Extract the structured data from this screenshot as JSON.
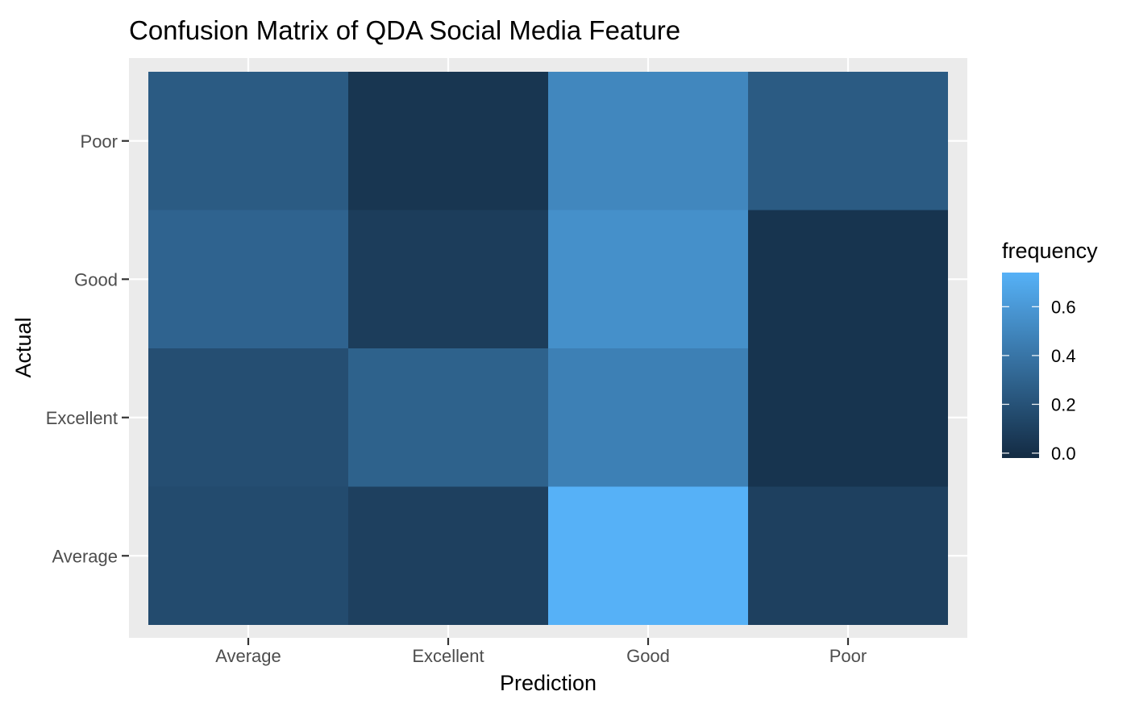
{
  "chart_data": {
    "type": "heatmap",
    "title": "Confusion Matrix of QDA Social Media Feature",
    "xlabel": "Prediction",
    "ylabel": "Actual",
    "x_categories": [
      "Average",
      "Excellent",
      "Good",
      "Poor"
    ],
    "y_categories": [
      "Average",
      "Excellent",
      "Good",
      "Poor"
    ],
    "cells": [
      {
        "actual": "Poor",
        "prediction": "Average",
        "frequency": 0.25
      },
      {
        "actual": "Poor",
        "prediction": "Excellent",
        "frequency": 0.04
      },
      {
        "actual": "Poor",
        "prediction": "Good",
        "frequency": 0.5
      },
      {
        "actual": "Poor",
        "prediction": "Poor",
        "frequency": 0.25
      },
      {
        "actual": "Good",
        "prediction": "Average",
        "frequency": 0.3
      },
      {
        "actual": "Good",
        "prediction": "Excellent",
        "frequency": 0.08
      },
      {
        "actual": "Good",
        "prediction": "Good",
        "frequency": 0.55
      },
      {
        "actual": "Good",
        "prediction": "Poor",
        "frequency": 0.03
      },
      {
        "actual": "Excellent",
        "prediction": "Average",
        "frequency": 0.18
      },
      {
        "actual": "Excellent",
        "prediction": "Excellent",
        "frequency": 0.29
      },
      {
        "actual": "Excellent",
        "prediction": "Good",
        "frequency": 0.46
      },
      {
        "actual": "Excellent",
        "prediction": "Poor",
        "frequency": 0.03
      },
      {
        "actual": "Average",
        "prediction": "Average",
        "frequency": 0.16
      },
      {
        "actual": "Average",
        "prediction": "Excellent",
        "frequency": 0.1
      },
      {
        "actual": "Average",
        "prediction": "Good",
        "frequency": 0.74
      },
      {
        "actual": "Average",
        "prediction": "Poor",
        "frequency": 0.1
      }
    ],
    "legend": {
      "title": "frequency",
      "ticks": [
        0.0,
        0.2,
        0.4,
        0.6
      ],
      "tick_labels": [
        "0.0",
        "0.2",
        "0.4",
        "0.6"
      ],
      "range": [
        -0.02,
        0.74
      ],
      "low_color": "#132B43",
      "high_color": "#56B1F7",
      "position": "right"
    },
    "panel_background": "#EBEBEB",
    "grid": true
  }
}
